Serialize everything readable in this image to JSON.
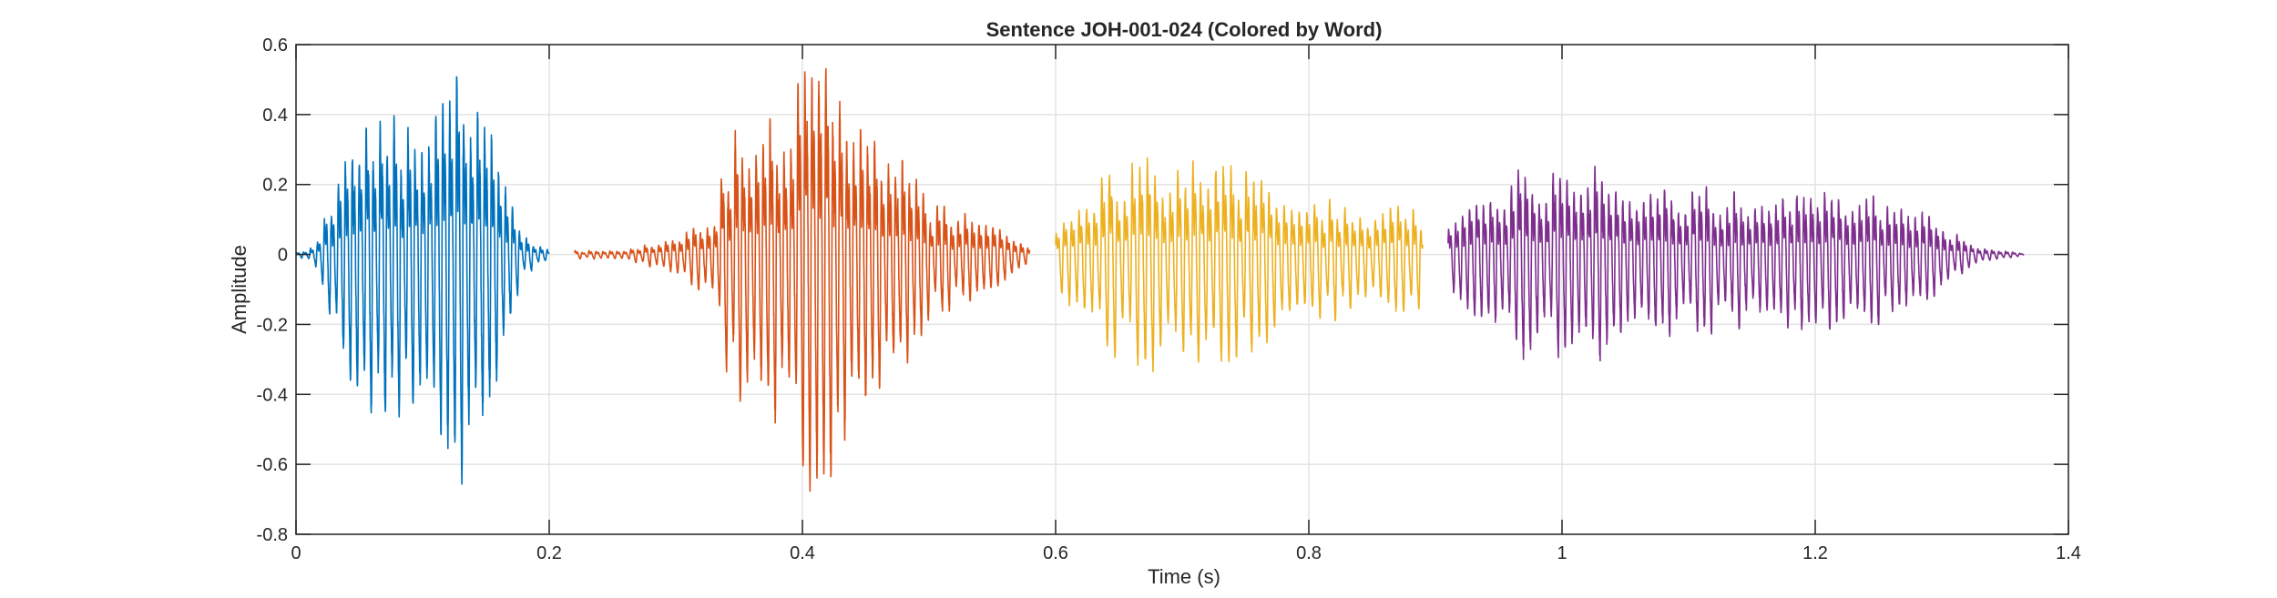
{
  "chart_data": {
    "type": "line",
    "title": "Sentence JOH-001-024 (Colored by Word)",
    "xlabel": "Time (s)",
    "ylabel": "Amplitude",
    "xlim": [
      0,
      1.4
    ],
    "ylim": [
      -0.8,
      0.6
    ],
    "xticks": [
      0,
      0.2,
      0.4,
      0.6,
      0.8,
      1,
      1.2,
      1.4
    ],
    "xtick_labels": [
      "0",
      "0.2",
      "0.4",
      "0.6",
      "0.8",
      "1",
      "1.2",
      "1.4"
    ],
    "yticks": [
      -0.8,
      -0.6,
      -0.4,
      -0.2,
      0,
      0.2,
      0.4,
      0.6
    ],
    "ytick_labels": [
      "-0.8",
      "-0.6",
      "-0.4",
      "-0.2",
      "0",
      "0.2",
      "0.4",
      "0.6"
    ],
    "grid": true,
    "legend": "none",
    "series": [
      {
        "color": "#0072BD",
        "t_start": 0.0,
        "t_end": 0.2,
        "period": 0.0055,
        "envelope": [
          [
            0.0,
            0.005
          ],
          [
            0.015,
            0.02
          ],
          [
            0.03,
            0.2
          ],
          [
            0.05,
            0.35
          ],
          [
            0.1,
            0.42
          ],
          [
            0.14,
            0.55
          ],
          [
            0.16,
            0.3
          ],
          [
            0.18,
            0.05
          ],
          [
            0.2,
            0.01
          ]
        ]
      },
      {
        "color": "#D95319",
        "t_start": 0.22,
        "t_end": 0.58,
        "period": 0.0055,
        "envelope": [
          [
            0.22,
            0.01
          ],
          [
            0.26,
            0.01
          ],
          [
            0.3,
            0.05
          ],
          [
            0.33,
            0.12
          ],
          [
            0.345,
            0.35
          ],
          [
            0.38,
            0.42
          ],
          [
            0.42,
            0.55
          ],
          [
            0.46,
            0.35
          ],
          [
            0.5,
            0.15
          ],
          [
            0.55,
            0.08
          ],
          [
            0.58,
            0.02
          ]
        ]
      },
      {
        "color": "#EDB120",
        "t_start": 0.6,
        "t_end": 0.89,
        "period": 0.006,
        "envelope": [
          [
            0.6,
            0.05
          ],
          [
            0.62,
            0.2
          ],
          [
            0.68,
            0.26
          ],
          [
            0.72,
            0.26
          ],
          [
            0.8,
            0.16
          ],
          [
            0.85,
            0.13
          ],
          [
            0.89,
            0.12
          ]
        ]
      },
      {
        "color": "#7E2F8E",
        "t_start": 0.91,
        "t_end": 1.365,
        "period": 0.0055,
        "envelope": [
          [
            0.91,
            0.08
          ],
          [
            0.93,
            0.18
          ],
          [
            0.98,
            0.24
          ],
          [
            1.03,
            0.25
          ],
          [
            1.08,
            0.2
          ],
          [
            1.15,
            0.16
          ],
          [
            1.2,
            0.17
          ],
          [
            1.26,
            0.16
          ],
          [
            1.3,
            0.08
          ],
          [
            1.33,
            0.02
          ],
          [
            1.365,
            0.002
          ]
        ]
      }
    ]
  }
}
